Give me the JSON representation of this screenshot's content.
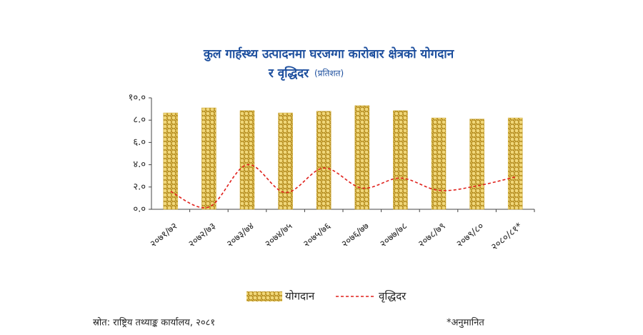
{
  "chart_data": {
    "type": "bar_line",
    "title": [
      "कुल गार्हस्थ्य उत्पादनमा घरजग्गा कारोबार क्षेत्रको योगदान",
      "र वृद्धिदर"
    ],
    "subtitle": "(प्रतिशत)",
    "categories": [
      "२०७१/७२",
      "२०७२/७३",
      "२०७३/७४",
      "२०७४/७५",
      "२०७५/७६",
      "२०७६/७७",
      "२०७७/७८",
      "२०७८/७९",
      "२०७९/८०",
      "२०८०/८१*"
    ],
    "series": [
      {
        "name": "योगदान",
        "type": "bar",
        "color": "#c9a227",
        "values": [
          8.65,
          9.1,
          8.85,
          8.65,
          8.8,
          9.3,
          8.85,
          8.2,
          8.1,
          8.2
        ]
      },
      {
        "name": "वृद्धिदर",
        "type": "line",
        "color": "#e0201b",
        "values": [
          1.6,
          0.2,
          4.0,
          1.5,
          3.7,
          1.9,
          2.8,
          1.7,
          2.1,
          2.9
        ]
      }
    ],
    "ylim": [
      0,
      10
    ],
    "yticks": [
      {
        "value": 0,
        "label": "०.०"
      },
      {
        "value": 2,
        "label": "२.०"
      },
      {
        "value": 4,
        "label": "४.०"
      },
      {
        "value": 6,
        "label": "६.०"
      },
      {
        "value": 8,
        "label": "८.०"
      },
      {
        "value": 10,
        "label": "१०.०"
      }
    ],
    "source": "स्रोत: राष्ट्रिय तथ्याङ्क कार्यालय, २०८१",
    "note": "*अनुमानित"
  }
}
